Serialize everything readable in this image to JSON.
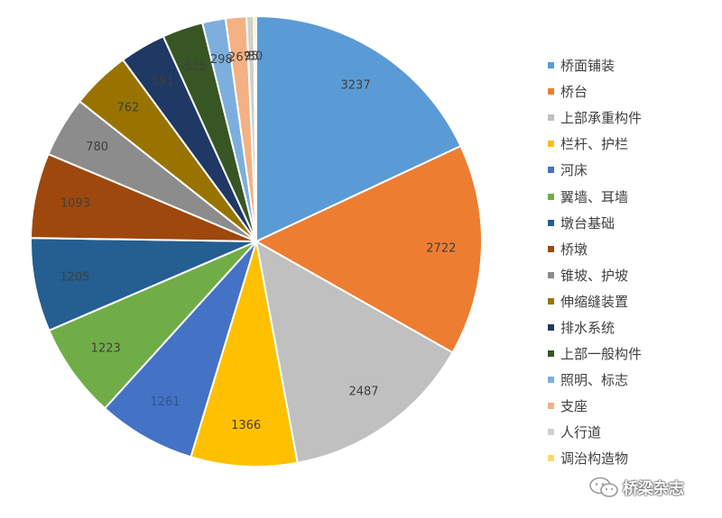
{
  "chart_data": {
    "type": "pie",
    "title": "",
    "legend_position": "right",
    "series": [
      {
        "name": "桥面铺装",
        "value": 3237,
        "color": "#5B9BD5",
        "label_color": "#404040"
      },
      {
        "name": "桥台",
        "value": 2722,
        "color": "#ED7D31",
        "label_color": "#404040"
      },
      {
        "name": "上部承重构件",
        "value": 2487,
        "color": "#C0C0C0",
        "label_color": "#404040"
      },
      {
        "name": "栏杆、护栏",
        "value": 1366,
        "color": "#FFC000",
        "label_color": "#404040"
      },
      {
        "name": "河床",
        "value": 1261,
        "color": "#4472C4",
        "label_color": "#2F5597"
      },
      {
        "name": "翼墙、耳墙",
        "value": 1223,
        "color": "#70AD47",
        "label_color": "#404040"
      },
      {
        "name": "墩台基础",
        "value": 1205,
        "color": "#255E91",
        "label_color": "#404040"
      },
      {
        "name": "桥墩",
        "value": 1093,
        "color": "#9E480E",
        "label_color": "#404040"
      },
      {
        "name": "锥坡、护坡",
        "value": 780,
        "color": "#8C8C8C",
        "label_color": "#404040"
      },
      {
        "name": "伸缩缝装置",
        "value": 762,
        "color": "#997300",
        "label_color": "#404040"
      },
      {
        "name": "排水系统",
        "value": 591,
        "color": "#203864",
        "label_color": "#404040"
      },
      {
        "name": "上部一般构件",
        "value": 525,
        "color": "#375623",
        "label_color": "#404040"
      },
      {
        "name": "照明、标志",
        "value": 298,
        "color": "#7CAFDD",
        "label_color": "#404040"
      },
      {
        "name": "支座",
        "value": 267,
        "color": "#F4B183",
        "label_color": "#404040"
      },
      {
        "name": "人行道",
        "value": 95,
        "color": "#D0D0D0",
        "label_color": "#404040"
      },
      {
        "name": "调治构造物",
        "value": 30,
        "color": "#FFD966",
        "label_color": "#404040"
      }
    ]
  },
  "watermark": {
    "text": "桥梁杂志",
    "icon": "wechat-icon"
  }
}
